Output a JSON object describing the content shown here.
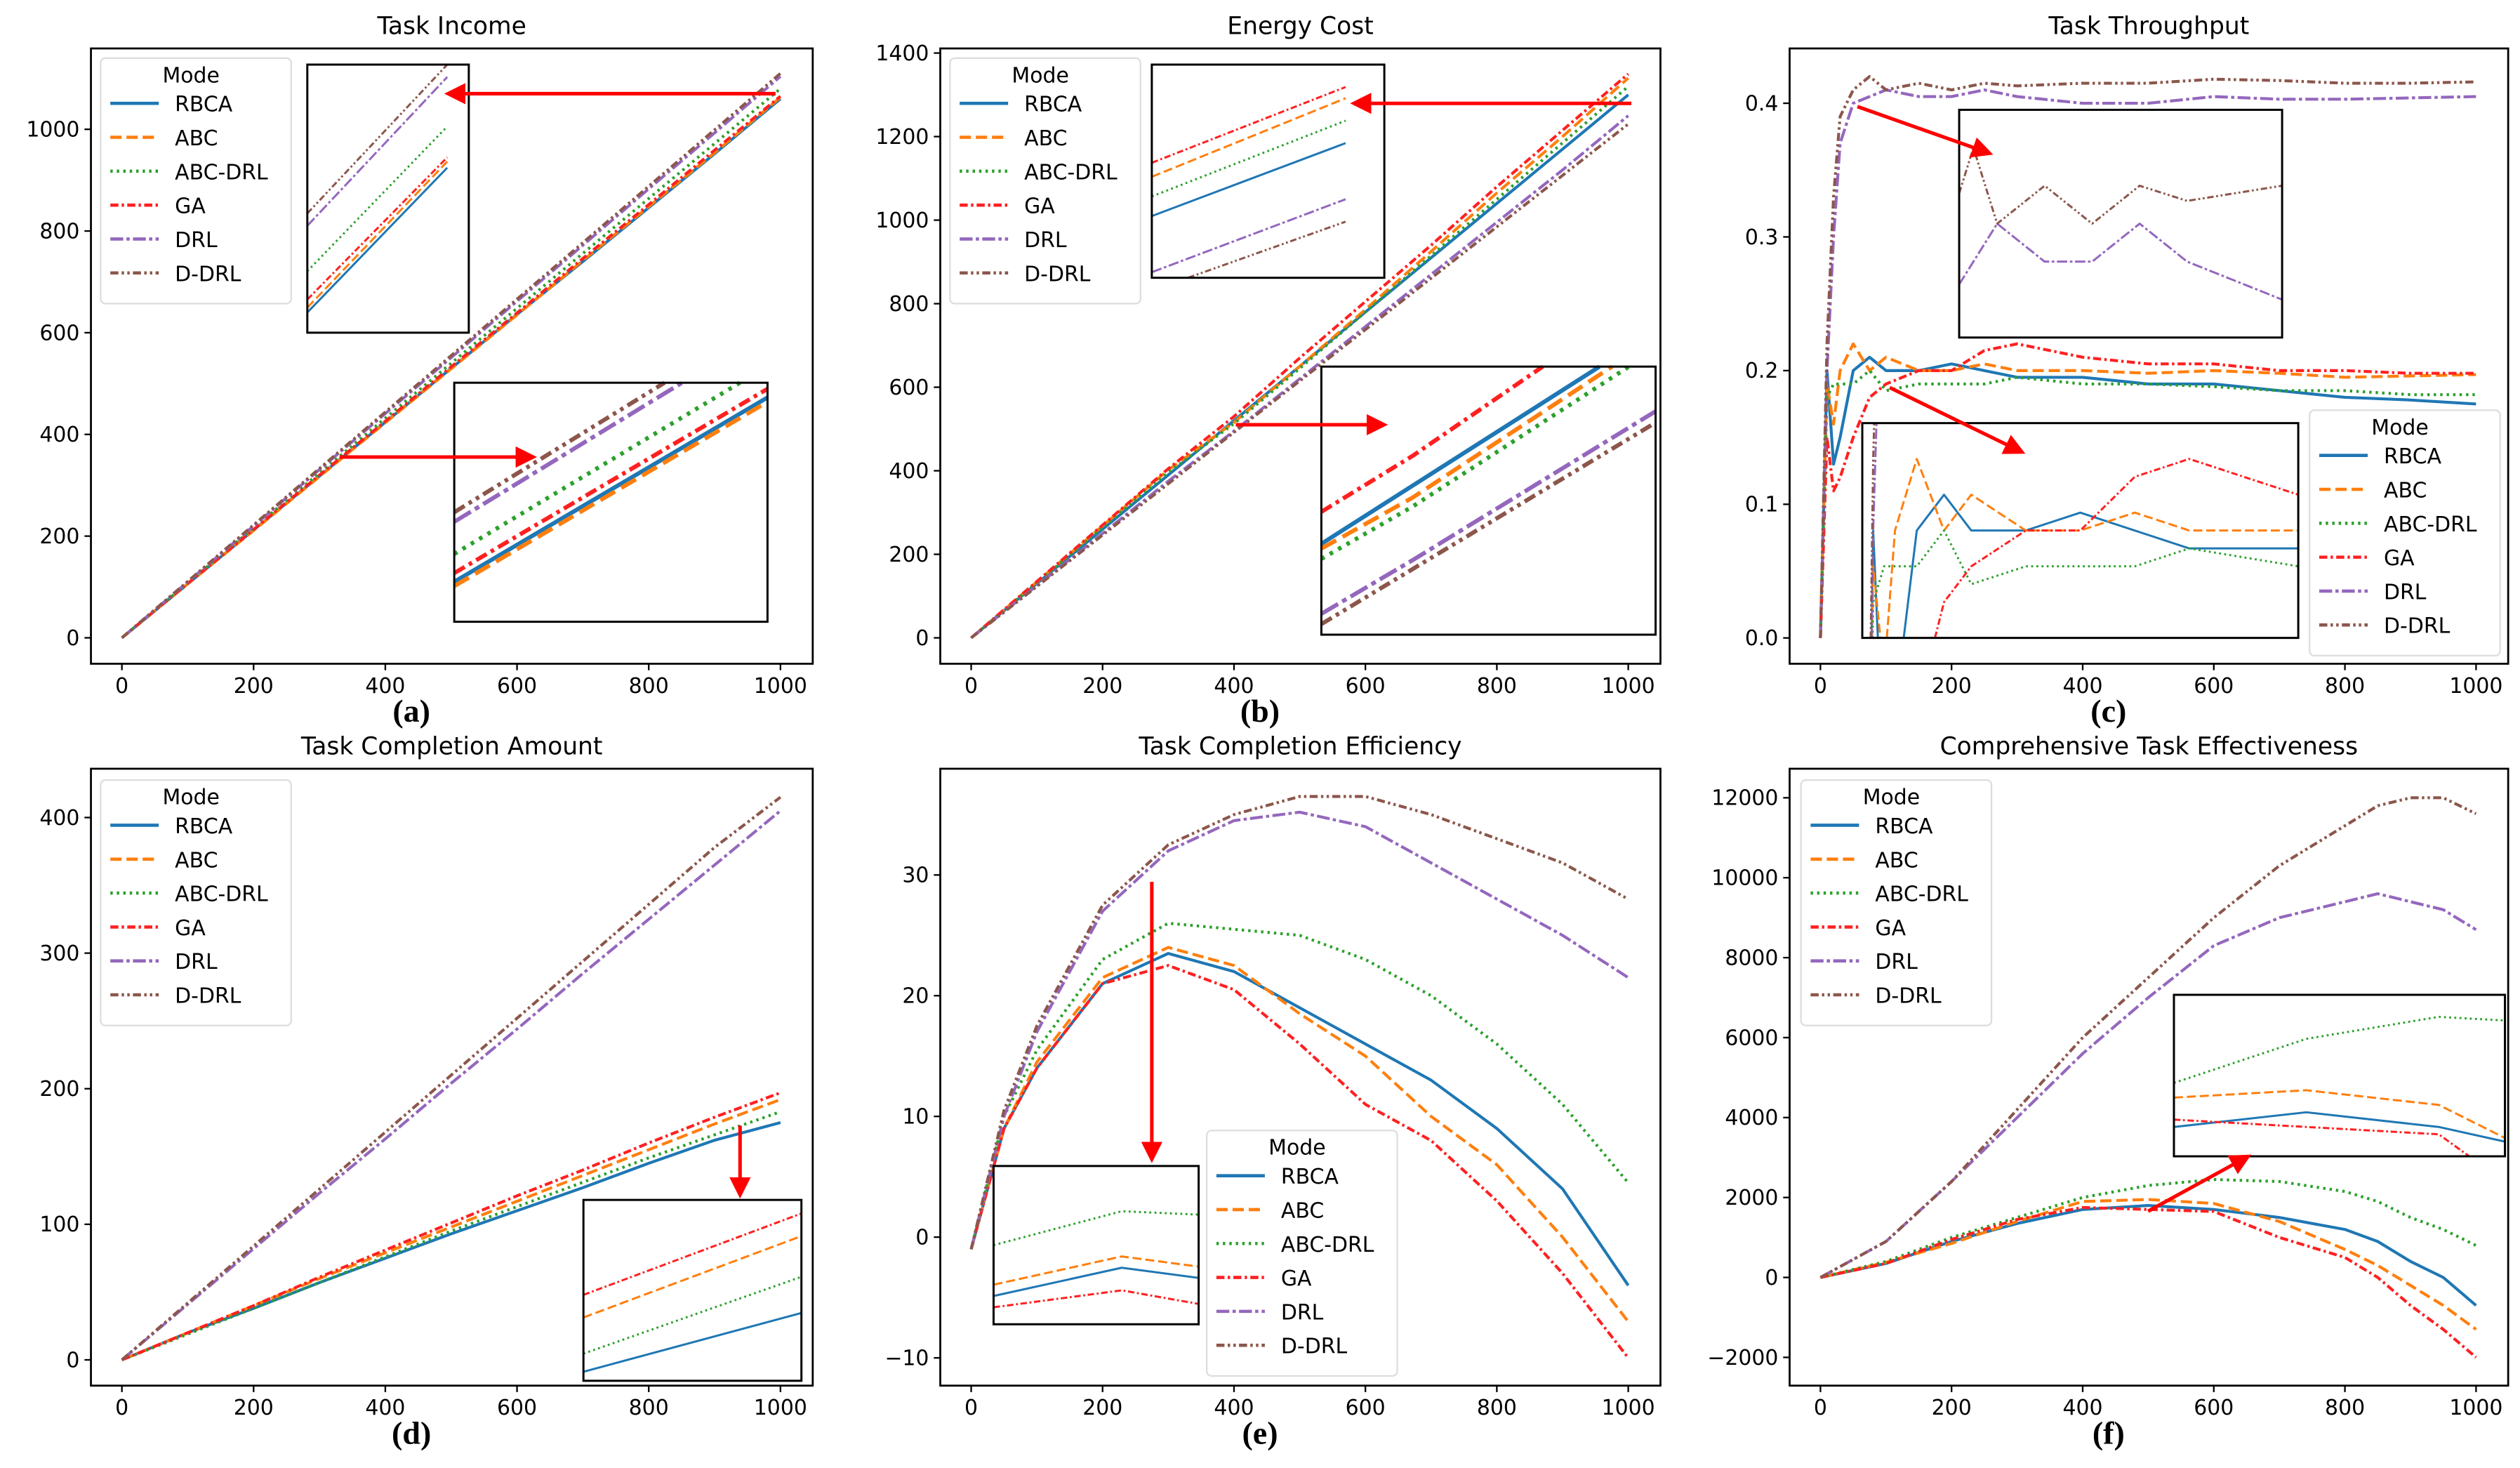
{
  "chart_data": [
    {
      "type": "line",
      "label": "(a)",
      "title": "Task Income",
      "xlim": [
        -47,
        1049
      ],
      "ylim": [
        -51,
        1159
      ],
      "xticks": [
        0,
        200,
        400,
        600,
        800,
        1000
      ],
      "yticks": [
        0,
        200,
        400,
        600,
        800,
        1000
      ],
      "legend_title": "Mode",
      "legend_position": "upper-left",
      "x": [
        0,
        100,
        200,
        300,
        400,
        500,
        600,
        700,
        800,
        900,
        1000
      ],
      "series": [
        {
          "name": "RBCA",
          "values": [
            0,
            106,
            212,
            318,
            424,
            530,
            636,
            740,
            846,
            952,
            1060
          ]
        },
        {
          "name": "ABC",
          "values": [
            0,
            106,
            211,
            317,
            423,
            529,
            635,
            742,
            848,
            954,
            1063
          ]
        },
        {
          "name": "ABC-DRL",
          "values": [
            0,
            108,
            216,
            324,
            432,
            540,
            648,
            756,
            864,
            972,
            1080
          ]
        },
        {
          "name": "GA",
          "values": [
            0,
            107,
            213,
            320,
            426,
            533,
            639,
            746,
            852,
            959,
            1065
          ]
        },
        {
          "name": "DRL",
          "values": [
            0,
            110,
            220,
            331,
            441,
            551,
            662,
            772,
            883,
            993,
            1104
          ]
        },
        {
          "name": "D-DRL",
          "values": [
            0,
            111,
            222,
            333,
            444,
            555,
            666,
            777,
            888,
            999,
            1110
          ]
        }
      ],
      "insets": [
        {
          "xlim": [
            935,
            1010
          ],
          "ylim": [
            980,
            1110
          ]
        },
        {
          "xlim": [
            320,
            360
          ],
          "ylim": [
            330,
            385
          ]
        }
      ]
    },
    {
      "type": "line",
      "label": "(b)",
      "title": "Energy Cost",
      "xlim": [
        -47,
        1049
      ],
      "ylim": [
        -62,
        1411
      ],
      "xticks": [
        0,
        200,
        400,
        600,
        800,
        1000
      ],
      "yticks": [
        0,
        200,
        400,
        600,
        800,
        1000,
        1200,
        1400
      ],
      "legend_title": "Mode",
      "legend_position": "upper-left",
      "x": [
        0,
        100,
        200,
        300,
        400,
        500,
        600,
        700,
        800,
        900,
        1000
      ],
      "series": [
        {
          "name": "RBCA",
          "values": [
            0,
            130,
            260,
            390,
            520,
            650,
            780,
            910,
            1040,
            1170,
            1300
          ]
        },
        {
          "name": "ABC",
          "values": [
            0,
            134,
            268,
            402,
            516,
            650,
            786,
            925,
            1065,
            1200,
            1340
          ]
        },
        {
          "name": "ABC-DRL",
          "values": [
            0,
            132,
            264,
            396,
            513,
            645,
            780,
            915,
            1050,
            1185,
            1320
          ]
        },
        {
          "name": "GA",
          "values": [
            0,
            135,
            270,
            405,
            530,
            670,
            805,
            940,
            1080,
            1215,
            1350
          ]
        },
        {
          "name": "DRL",
          "values": [
            0,
            125,
            250,
            375,
            495,
            620,
            745,
            870,
            995,
            1120,
            1250
          ]
        },
        {
          "name": "D-DRL",
          "values": [
            0,
            123,
            246,
            369,
            492,
            615,
            738,
            861,
            984,
            1107,
            1230
          ]
        }
      ],
      "insets": [
        {
          "xlim": [
            950,
            1010
          ],
          "ylim": [
            1180,
            1370
          ]
        },
        {
          "xlim": [
            385,
            440
          ],
          "ylim": [
            470,
            560
          ]
        }
      ]
    },
    {
      "type": "line",
      "label": "(c)",
      "title": "Task Throughput",
      "xlim": [
        -47,
        1049
      ],
      "ylim": [
        -0.0193,
        0.441
      ],
      "xticks": [
        0,
        200,
        400,
        600,
        800,
        1000
      ],
      "yticks": [
        0.0,
        0.1,
        0.2,
        0.3,
        0.4
      ],
      "legend_title": "Mode",
      "legend_position": "lower-right",
      "x": [
        0,
        10,
        20,
        30,
        50,
        75,
        100,
        150,
        200,
        250,
        300,
        400,
        500,
        600,
        700,
        800,
        900,
        1000
      ],
      "series": [
        {
          "name": "RBCA",
          "values": [
            0,
            0.2,
            0.13,
            0.15,
            0.2,
            0.21,
            0.2,
            0.2,
            0.205,
            0.2,
            0.195,
            0.195,
            0.19,
            0.19,
            0.185,
            0.18,
            0.178,
            0.175
          ]
        },
        {
          "name": "ABC",
          "values": [
            0,
            0.19,
            0.16,
            0.2,
            0.22,
            0.2,
            0.21,
            0.2,
            0.2,
            0.205,
            0.2,
            0.2,
            0.198,
            0.2,
            0.198,
            0.195,
            0.196,
            0.197
          ]
        },
        {
          "name": "ABC-DRL",
          "values": [
            0,
            0.18,
            0.19,
            0.19,
            0.19,
            0.2,
            0.185,
            0.19,
            0.19,
            0.19,
            0.195,
            0.19,
            0.19,
            0.188,
            0.185,
            0.185,
            0.182,
            0.182
          ]
        },
        {
          "name": "GA",
          "values": [
            0,
            0.15,
            0.11,
            0.12,
            0.15,
            0.18,
            0.19,
            0.2,
            0.2,
            0.215,
            0.22,
            0.21,
            0.205,
            0.205,
            0.2,
            0.2,
            0.198,
            0.198
          ]
        },
        {
          "name": "DRL",
          "values": [
            0,
            0.2,
            0.3,
            0.37,
            0.4,
            0.405,
            0.41,
            0.405,
            0.405,
            0.41,
            0.405,
            0.4,
            0.4,
            0.405,
            0.403,
            0.403,
            0.404,
            0.405
          ]
        },
        {
          "name": "D-DRL",
          "values": [
            0,
            0.22,
            0.33,
            0.39,
            0.41,
            0.42,
            0.41,
            0.415,
            0.41,
            0.415,
            0.413,
            0.415,
            0.415,
            0.418,
            0.417,
            0.415,
            0.415,
            0.416
          ]
        }
      ],
      "insets": [
        {
          "xlim": [
            60,
            400
          ],
          "ylim": [
            0.395,
            0.425
          ]
        },
        {
          "xlim": [
            0,
            400
          ],
          "ylim": [
            0.17,
            0.23
          ]
        }
      ]
    },
    {
      "type": "line",
      "label": "(d)",
      "title": "Task Completion Amount",
      "xlim": [
        -47,
        1049
      ],
      "ylim": [
        -19,
        436
      ],
      "xticks": [
        0,
        200,
        400,
        600,
        800,
        1000
      ],
      "yticks": [
        0,
        100,
        200,
        300,
        400
      ],
      "legend_title": "Mode",
      "legend_position": "upper-left",
      "x": [
        0,
        100,
        200,
        300,
        400,
        500,
        600,
        700,
        800,
        900,
        1000
      ],
      "series": [
        {
          "name": "RBCA",
          "values": [
            0,
            20,
            38,
            57,
            75,
            93,
            110,
            127,
            145,
            162,
            175
          ]
        },
        {
          "name": "ABC",
          "values": [
            0,
            20,
            40,
            60,
            79,
            98,
            117,
            136,
            155,
            174,
            192
          ]
        },
        {
          "name": "ABC-DRL",
          "values": [
            0,
            19,
            38,
            57,
            76,
            95,
            113,
            131,
            149,
            166,
            183
          ]
        },
        {
          "name": "GA",
          "values": [
            0,
            20,
            40,
            61,
            81,
            101,
            121,
            140,
            160,
            179,
            197
          ]
        },
        {
          "name": "DRL",
          "values": [
            0,
            41,
            82,
            123,
            163,
            204,
            244,
            285,
            325,
            365,
            405
          ]
        },
        {
          "name": "D-DRL",
          "values": [
            0,
            42,
            84,
            126,
            168,
            210,
            252,
            294,
            336,
            378,
            415
          ]
        }
      ],
      "insets": [
        {
          "xlim": [
            900,
            1000
          ],
          "ylim": [
            160,
            200
          ]
        }
      ]
    },
    {
      "type": "line",
      "label": "(e)",
      "title": "Task Completion Efficiency",
      "xlim": [
        -47,
        1049
      ],
      "ylim": [
        -12.3,
        38.8
      ],
      "xticks": [
        0,
        200,
        400,
        600,
        800,
        1000
      ],
      "yticks": [
        -10,
        0,
        10,
        20,
        30
      ],
      "legend_title": "Mode",
      "legend_position": "lower-center",
      "x": [
        0,
        50,
        100,
        200,
        300,
        400,
        500,
        600,
        700,
        800,
        900,
        1000
      ],
      "series": [
        {
          "name": "RBCA",
          "values": [
            -1,
            9,
            14,
            21,
            23.5,
            22,
            19,
            16,
            13,
            9,
            4,
            -4
          ]
        },
        {
          "name": "ABC",
          "values": [
            -1,
            9,
            14.5,
            21.5,
            24,
            22.5,
            18.5,
            15,
            10,
            6,
            0,
            -7
          ]
        },
        {
          "name": "ABC-DRL",
          "values": [
            -1,
            10,
            15.5,
            23,
            26,
            25.5,
            25,
            23,
            20,
            16,
            11,
            4.5
          ]
        },
        {
          "name": "GA",
          "values": [
            -1,
            9,
            14,
            21,
            22.5,
            20.5,
            16,
            11,
            8,
            3,
            -3,
            -10
          ]
        },
        {
          "name": "DRL",
          "values": [
            -1,
            10,
            17,
            27,
            32,
            34.5,
            35.2,
            34,
            31,
            28,
            25,
            21.5
          ]
        },
        {
          "name": "D-DRL",
          "values": [
            -1,
            10.5,
            17.5,
            27.5,
            32.5,
            35,
            36.5,
            36.5,
            35,
            33,
            31,
            28
          ]
        }
      ],
      "insets": [
        {
          "xlim": [
            250,
            330
          ],
          "ylim": [
            21,
            28
          ]
        }
      ]
    },
    {
      "type": "line",
      "label": "(f)",
      "title": "Comprehensive Task Effectiveness",
      "xlim": [
        -47,
        1049
      ],
      "ylim": [
        -2707,
        12727
      ],
      "xticks": [
        0,
        200,
        400,
        600,
        800,
        1000
      ],
      "yticks": [
        -2000,
        0,
        2000,
        4000,
        6000,
        8000,
        10000,
        12000
      ],
      "legend_title": "Mode",
      "legend_position": "upper-left",
      "x": [
        0,
        100,
        200,
        300,
        400,
        500,
        600,
        700,
        800,
        850,
        900,
        950,
        1000
      ],
      "series": [
        {
          "name": "RBCA",
          "values": [
            0,
            350,
            900,
            1350,
            1700,
            1800,
            1700,
            1500,
            1200,
            900,
            400,
            0,
            -700
          ]
        },
        {
          "name": "ABC",
          "values": [
            0,
            380,
            850,
            1400,
            1900,
            1950,
            1850,
            1400,
            700,
            300,
            -200,
            -700,
            -1300
          ]
        },
        {
          "name": "ABC-DRL",
          "values": [
            0,
            400,
            1000,
            1500,
            2000,
            2300,
            2450,
            2400,
            2150,
            1900,
            1500,
            1200,
            800
          ]
        },
        {
          "name": "GA",
          "values": [
            0,
            350,
            950,
            1450,
            1750,
            1700,
            1650,
            1000,
            500,
            0,
            -700,
            -1300,
            -2000
          ]
        },
        {
          "name": "DRL",
          "values": [
            0,
            900,
            2400,
            4000,
            5600,
            7000,
            8300,
            9000,
            9400,
            9600,
            9400,
            9200,
            8700
          ]
        },
        {
          "name": "D-DRL",
          "values": [
            0,
            900,
            2400,
            4200,
            6000,
            7500,
            9000,
            10300,
            11300,
            11800,
            12000,
            12000,
            11600
          ]
        }
      ],
      "insets": [
        {
          "xlim": [
            400,
            650
          ],
          "ylim": [
            1500,
            2600
          ]
        }
      ]
    }
  ],
  "colors": {
    "RBCA": "#1f77b4",
    "ABC": "#ff7f0e",
    "ABC-DRL": "#2ca02c",
    "GA": "#ff2020",
    "DRL": "#9467bd",
    "D-DRL": "#8c564b",
    "arrow": "#ff0000"
  }
}
